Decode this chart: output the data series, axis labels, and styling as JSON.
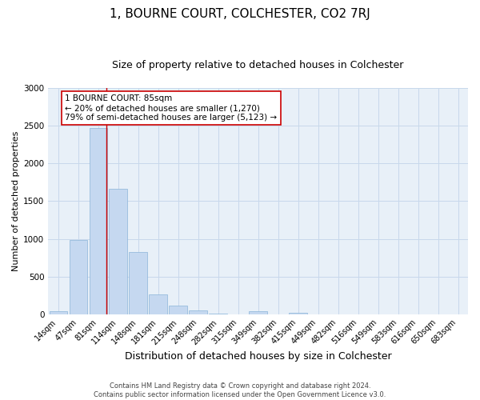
{
  "title": "1, BOURNE COURT, COLCHESTER, CO2 7RJ",
  "subtitle": "Size of property relative to detached houses in Colchester",
  "xlabel": "Distribution of detached houses by size in Colchester",
  "ylabel": "Number of detached properties",
  "bar_labels": [
    "14sqm",
    "47sqm",
    "81sqm",
    "114sqm",
    "148sqm",
    "181sqm",
    "215sqm",
    "248sqm",
    "282sqm",
    "315sqm",
    "349sqm",
    "382sqm",
    "415sqm",
    "449sqm",
    "482sqm",
    "516sqm",
    "549sqm",
    "583sqm",
    "616sqm",
    "650sqm",
    "683sqm"
  ],
  "bar_values": [
    40,
    980,
    2470,
    1660,
    820,
    265,
    115,
    50,
    10,
    0,
    40,
    0,
    15,
    0,
    0,
    0,
    0,
    0,
    0,
    0,
    0
  ],
  "bar_color": "#c5d8f0",
  "bar_edge_color": "#8ab4d8",
  "grid_color": "#c8d8eb",
  "background_color": "#e8f0f8",
  "vline_x": 2.425,
  "vline_color": "#cc0000",
  "annotation_text_line1": "1 BOURNE COURT: 85sqm",
  "annotation_text_line2": "← 20% of detached houses are smaller (1,270)",
  "annotation_text_line3": "79% of semi-detached houses are larger (5,123) →",
  "ylim": [
    0,
    3000
  ],
  "yticks": [
    0,
    500,
    1000,
    1500,
    2000,
    2500,
    3000
  ],
  "footer_line1": "Contains HM Land Registry data © Crown copyright and database right 2024.",
  "footer_line2": "Contains public sector information licensed under the Open Government Licence v3.0.",
  "title_fontsize": 11,
  "subtitle_fontsize": 9,
  "xlabel_fontsize": 9,
  "ylabel_fontsize": 8,
  "tick_fontsize": 7,
  "annotation_fontsize": 7.5,
  "footer_fontsize": 6
}
